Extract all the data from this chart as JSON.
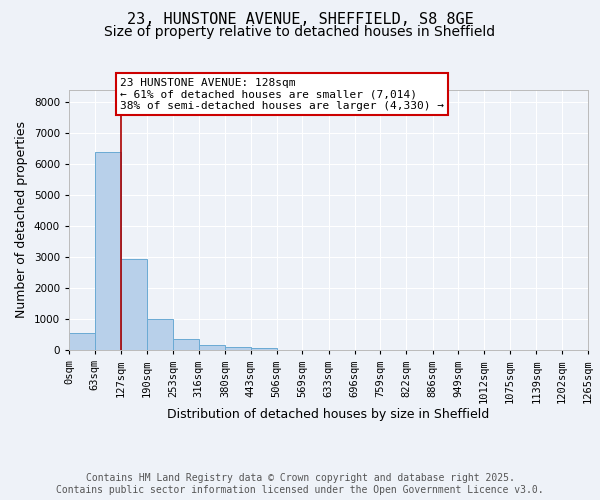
{
  "title_line1": "23, HUNSTONE AVENUE, SHEFFIELD, S8 8GE",
  "title_line2": "Size of property relative to detached houses in Sheffield",
  "xlabel": "Distribution of detached houses by size in Sheffield",
  "ylabel": "Number of detached properties",
  "bar_color": "#b8d0ea",
  "bar_edge_color": "#6aaad4",
  "vline_color": "#aa0000",
  "vline_x": 127,
  "annotation_text": "23 HUNSTONE AVENUE: 128sqm\n← 61% of detached houses are smaller (7,014)\n38% of semi-detached houses are larger (4,330) →",
  "annotation_box_edge_color": "#cc0000",
  "bin_edges": [
    0,
    63,
    127,
    190,
    253,
    316,
    380,
    443,
    506,
    569,
    633,
    696,
    759,
    822,
    886,
    949,
    1012,
    1075,
    1139,
    1202,
    1265
  ],
  "bin_counts": [
    550,
    6400,
    2950,
    1000,
    350,
    150,
    100,
    50,
    0,
    0,
    0,
    0,
    0,
    0,
    0,
    0,
    0,
    0,
    0,
    0
  ],
  "ylim": [
    0,
    8400
  ],
  "yticks": [
    0,
    1000,
    2000,
    3000,
    4000,
    5000,
    6000,
    7000,
    8000
  ],
  "footer_text": "Contains HM Land Registry data © Crown copyright and database right 2025.\nContains public sector information licensed under the Open Government Licence v3.0.",
  "background_color": "#eef2f8",
  "grid_color": "#ffffff",
  "title_fontsize": 11,
  "subtitle_fontsize": 10,
  "axis_label_fontsize": 9,
  "tick_fontsize": 7.5,
  "footer_fontsize": 7,
  "annot_fontsize": 8
}
